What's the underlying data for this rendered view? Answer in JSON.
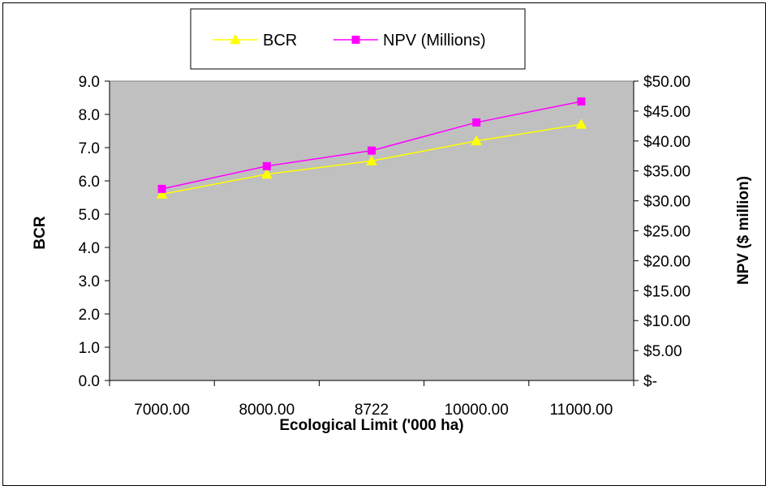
{
  "chart_data": {
    "type": "line",
    "categories": [
      "7000.00",
      "8000.00",
      "8722",
      "10000.00",
      "11000.00"
    ],
    "xlabel": "Ecological Limit ('000 ha)",
    "ylabel": "BCR",
    "y2label": "NPV ($ million)",
    "ylim": [
      0,
      9
    ],
    "y_ticks": [
      "0.0",
      "1.0",
      "2.0",
      "3.0",
      "4.0",
      "5.0",
      "6.0",
      "7.0",
      "8.0",
      "9.0"
    ],
    "y2lim": [
      0,
      50
    ],
    "y2_ticks": [
      "$-",
      "$5.00",
      "$10.00",
      "$15.00",
      "$20.00",
      "$25.00",
      "$30.00",
      "$35.00",
      "$40.00",
      "$45.00",
      "$50.00"
    ],
    "series": [
      {
        "name": "BCR",
        "axis": "left",
        "marker": "triangle",
        "color": "#ffff00",
        "values": [
          5.6,
          6.2,
          6.6,
          7.2,
          7.7
        ]
      },
      {
        "name": "NPV (Millions)",
        "axis": "right",
        "marker": "square",
        "color": "#ff00ff",
        "values": [
          32.0,
          35.8,
          38.4,
          43.1,
          46.6
        ]
      }
    ],
    "legend": "top",
    "plot_background": "#c0c0c0",
    "grid": false
  }
}
